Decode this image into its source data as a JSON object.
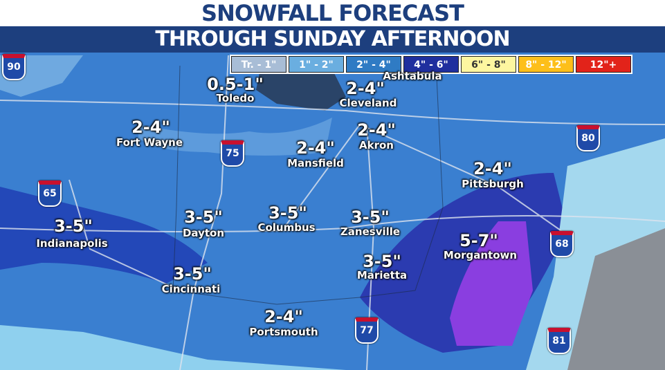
{
  "header": {
    "title": "SNOWFALL FORECAST",
    "subtitle": "THROUGH SUNDAY AFTERNOON"
  },
  "legend": [
    {
      "label": "Tr. - 1\"",
      "color": "#a8bdd6",
      "text": "#fff"
    },
    {
      "label": "1\" - 2\"",
      "color": "#6aaee0",
      "text": "#fff"
    },
    {
      "label": "2\" - 4\"",
      "color": "#2f7bc4",
      "text": "#fff"
    },
    {
      "label": "4\" - 6\"",
      "color": "#1f2f9e",
      "text": "#fff"
    },
    {
      "label": "6\" - 8\"",
      "color": "#fdf6a0",
      "text": "#333"
    },
    {
      "label": "8\" - 12\"",
      "color": "#fdbf1a",
      "text": "#fff"
    },
    {
      "label": "12\"+",
      "color": "#e2231a",
      "text": "#fff"
    }
  ],
  "labels": [
    {
      "value": "0.5-1\"",
      "city": "Toledo"
    },
    {
      "value": "2-4\"",
      "city": "Cleveland"
    },
    {
      "value": "",
      "city": "Ashtabula"
    },
    {
      "value": "2-4\"",
      "city": "Fort Wayne"
    },
    {
      "value": "2-4\"",
      "city": "Akron"
    },
    {
      "value": "2-4\"",
      "city": "Mansfield"
    },
    {
      "value": "2-4\"",
      "city": "Pittsburgh"
    },
    {
      "value": "3-5\"",
      "city": "Indianapolis"
    },
    {
      "value": "3-5\"",
      "city": "Dayton"
    },
    {
      "value": "3-5\"",
      "city": "Columbus"
    },
    {
      "value": "3-5\"",
      "city": "Zanesville"
    },
    {
      "value": "5-7\"",
      "city": "Morgantown"
    },
    {
      "value": "3-5\"",
      "city": "Marietta"
    },
    {
      "value": "3-5\"",
      "city": "Cincinnati"
    },
    {
      "value": "2-4\"",
      "city": "Portsmouth"
    }
  ],
  "interstates": [
    "90",
    "75",
    "80",
    "65",
    "68",
    "77",
    "81"
  ]
}
